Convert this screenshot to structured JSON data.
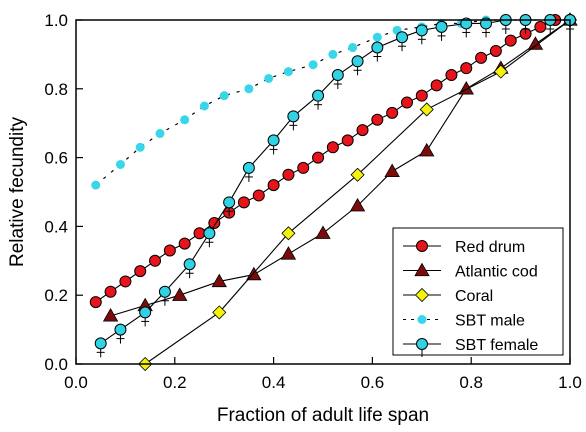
{
  "chart_data": {
    "type": "line",
    "title": "",
    "xlabel": "Fraction of adult life span",
    "ylabel": "Relative fecundity",
    "xlim": [
      0.0,
      1.0
    ],
    "ylim": [
      0.0,
      1.0
    ],
    "x_ticks": [
      "0.0",
      "0.2",
      "0.4",
      "0.6",
      "0.8",
      "1.0"
    ],
    "y_ticks": [
      "0.0",
      "0.2",
      "0.4",
      "0.6",
      "0.8",
      "1.0"
    ],
    "grid": false,
    "legend_position": "bottom-right",
    "series": [
      {
        "name": "Red drum",
        "marker": "circle",
        "color": "#e8141c",
        "x": [
          0.04,
          0.07,
          0.1,
          0.13,
          0.16,
          0.19,
          0.22,
          0.25,
          0.28,
          0.31,
          0.34,
          0.37,
          0.4,
          0.43,
          0.46,
          0.49,
          0.52,
          0.55,
          0.58,
          0.61,
          0.64,
          0.67,
          0.7,
          0.73,
          0.76,
          0.79,
          0.82,
          0.85,
          0.88,
          0.91,
          0.94,
          0.97,
          1.0
        ],
        "y": [
          0.18,
          0.21,
          0.24,
          0.27,
          0.3,
          0.33,
          0.35,
          0.38,
          0.41,
          0.44,
          0.47,
          0.49,
          0.52,
          0.55,
          0.57,
          0.6,
          0.63,
          0.65,
          0.68,
          0.71,
          0.73,
          0.76,
          0.78,
          0.81,
          0.84,
          0.86,
          0.89,
          0.91,
          0.94,
          0.96,
          0.98,
          1.0,
          1.0
        ]
      },
      {
        "name": "Atlantic cod",
        "marker": "triangle",
        "color": "#7a0c0c",
        "x": [
          0.07,
          0.14,
          0.21,
          0.29,
          0.36,
          0.43,
          0.5,
          0.57,
          0.64,
          0.71,
          0.79,
          0.86,
          0.93,
          1.0
        ],
        "y": [
          0.14,
          0.17,
          0.2,
          0.24,
          0.26,
          0.32,
          0.38,
          0.46,
          0.56,
          0.62,
          0.8,
          0.86,
          0.93,
          1.0
        ]
      },
      {
        "name": "Coral",
        "marker": "diamond",
        "color": "#f5f20a",
        "x": [
          0.14,
          0.29,
          0.43,
          0.57,
          0.71,
          0.86,
          1.0
        ],
        "y": [
          0.0,
          0.15,
          0.38,
          0.55,
          0.74,
          0.85,
          1.0
        ]
      },
      {
        "name": "SBT male",
        "marker": "small-circle",
        "color": "#38d6e8",
        "x": [
          0.04,
          0.09,
          0.13,
          0.17,
          0.22,
          0.26,
          0.3,
          0.35,
          0.39,
          0.43,
          0.48,
          0.52,
          0.56,
          0.61,
          0.65,
          0.7,
          0.74,
          0.78,
          0.83,
          0.87,
          0.91,
          0.96,
          1.0
        ],
        "y": [
          0.52,
          0.58,
          0.63,
          0.67,
          0.71,
          0.75,
          0.78,
          0.8,
          0.83,
          0.85,
          0.87,
          0.9,
          0.92,
          0.95,
          0.97,
          0.98,
          0.99,
          0.99,
          1.0,
          1.0,
          1.0,
          1.0,
          1.0
        ]
      },
      {
        "name": "SBT female",
        "marker": "circle",
        "color": "#30d2e4",
        "x": [
          0.05,
          0.09,
          0.14,
          0.18,
          0.23,
          0.27,
          0.31,
          0.35,
          0.4,
          0.44,
          0.49,
          0.53,
          0.57,
          0.61,
          0.66,
          0.7,
          0.74,
          0.79,
          0.83,
          0.87,
          0.91,
          0.96,
          1.0
        ],
        "y": [
          0.06,
          0.1,
          0.15,
          0.21,
          0.29,
          0.38,
          0.47,
          0.57,
          0.65,
          0.72,
          0.78,
          0.84,
          0.88,
          0.92,
          0.95,
          0.97,
          0.98,
          0.99,
          0.99,
          1.0,
          1.0,
          1.0,
          1.0
        ]
      }
    ]
  }
}
